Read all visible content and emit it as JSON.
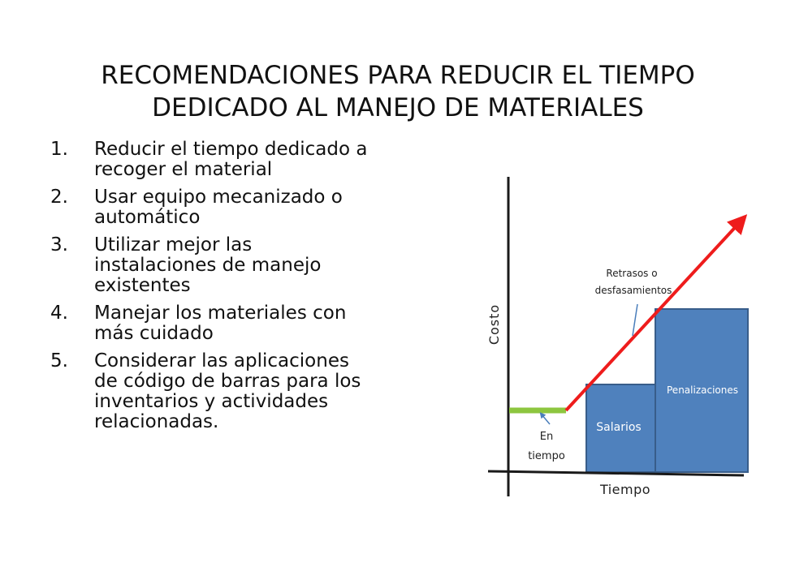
{
  "title": {
    "line1": "RECOMENDACIONES PARA REDUCIR EL TIEMPO",
    "line2": "DEDICADO AL MANEJO DE MATERIALES"
  },
  "recommendations": [
    {
      "number": "1.",
      "text": "Reducir el tiempo dedicado a recoger el material"
    },
    {
      "number": "2.",
      "text": "Usar equipo mecanizado o automático"
    },
    {
      "number": "3.",
      "text": "Utilizar mejor las instalaciones de manejo existentes"
    },
    {
      "number": "4.",
      "text": "Manejar los materiales con más cuidado"
    },
    {
      "number": "5.",
      "text": "Considerar las aplicaciones de código de barras para los inventarios y actividades relacionadas."
    }
  ],
  "diagram": {
    "y_axis_label": "Costo",
    "x_axis_label": "Tiempo",
    "on_time_label_line1": "En",
    "on_time_label_line2": "tiempo",
    "delay_label_line1": "Retrasos o",
    "delay_label_line2": "desfasamientos",
    "box_salarios": "Salarios",
    "box_penalizaciones": "Penalizaciones",
    "colors": {
      "axis": "#1a1a1a",
      "on_time_bar": "#8dc63f",
      "cost_arrow": "#ee1c1c",
      "box_fill": "#4f81bd",
      "box_stroke": "#385d8a",
      "pointer": "#4a7ebb"
    }
  }
}
